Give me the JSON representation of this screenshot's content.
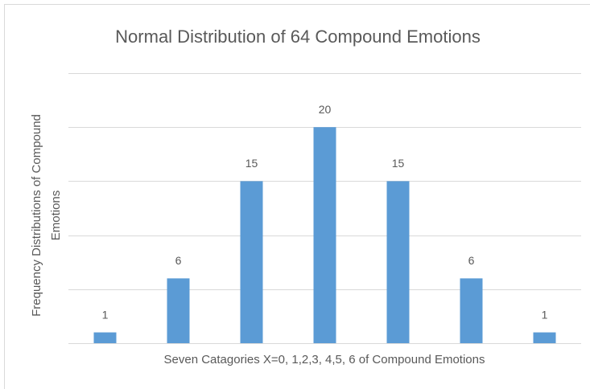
{
  "chart_data": {
    "type": "bar",
    "title": "Normal Distribution of 64 Compound Emotions",
    "x_label": "Seven Catagories X=0, 1,2,3, 4,5, 6 of Compound Emotions",
    "y_label": [
      "Frequency Distributions of  Compound",
      "Emotions"
    ],
    "categories": [
      null,
      null,
      null,
      null,
      null,
      null,
      null
    ],
    "values": [
      1,
      6,
      15,
      20,
      15,
      6,
      1
    ],
    "color": "#5b9bd5",
    "ylim": [
      0,
      25
    ],
    "yticks": [
      0,
      5,
      10,
      15,
      20,
      25
    ],
    "grid": true
  }
}
